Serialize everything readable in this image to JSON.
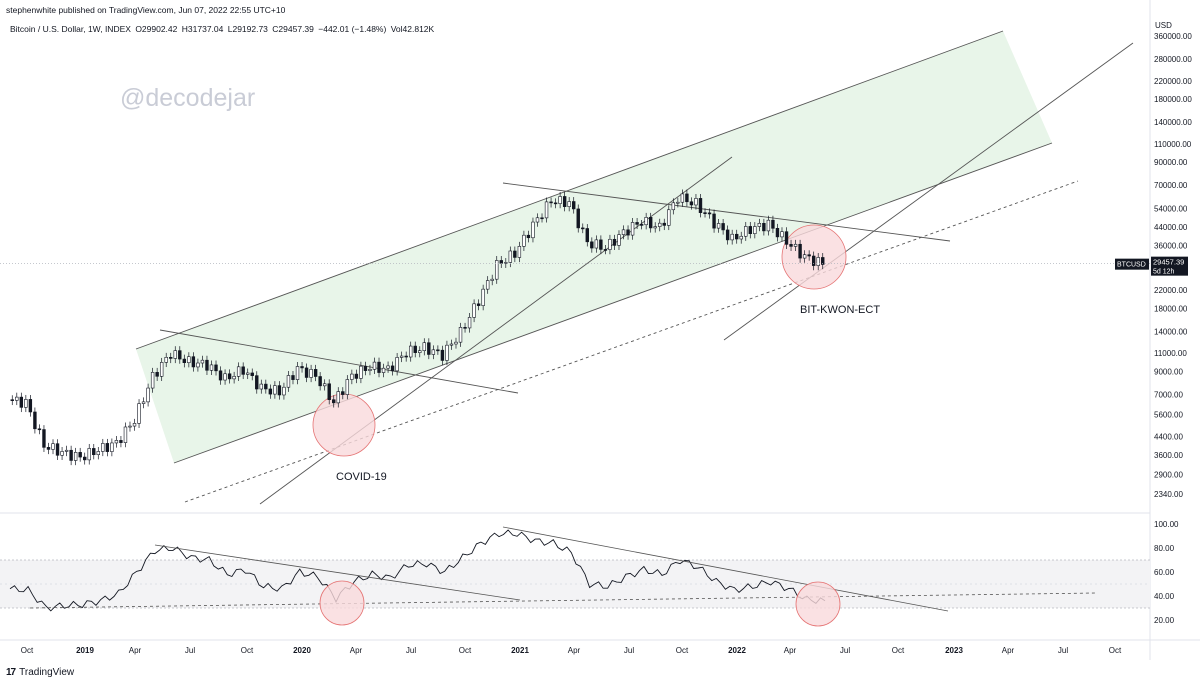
{
  "header": {
    "publisher": "stephenwhite published on TradingView.com, Jun 07, 2022 22:55 UTC+10",
    "symbol": "Bitcoin / U.S. Dollar, 1W, INDEX",
    "open": "O29902.42",
    "high": "H31737.04",
    "low": "L29192.73",
    "close": "C29457.39",
    "change": "−442.01 (−1.48%)",
    "volume": "Vol42.812K"
  },
  "watermark": "@decodejar",
  "annotations": {
    "covid": "COVID-19",
    "bitkwon": "BIT-KWON-ECT"
  },
  "price_tag": {
    "symbol": "BTCUSD",
    "value": "29457.39",
    "countdown": "5d 12h"
  },
  "branding": {
    "name": "TradingView",
    "logo_glyph": "17"
  },
  "colors": {
    "channel_fill": "#e8f5e9",
    "circle_fill": "#f9d9dc",
    "circle_stroke": "#e57373",
    "line": "#555555",
    "candle": "#131722",
    "rsi_band": "#f3f3f5"
  },
  "chart_data": [
    {
      "type": "line",
      "subtype": "candlestick",
      "title": "Bitcoin / U.S. Dollar, 1W, INDEX",
      "ylabel": "USD",
      "yscale": "log",
      "ylim": [
        2340,
        360000
      ],
      "y_ticks": [
        2340,
        2900,
        3600,
        4400,
        5600,
        7000,
        9000,
        11000,
        14000,
        18000,
        22000,
        28000,
        36000,
        44000,
        54000,
        70000,
        90000,
        110000,
        140000,
        180000,
        220000,
        280000,
        360000
      ],
      "y_tick_labels": [
        "2340.00",
        "2900.00",
        "3600.00",
        "4400.00",
        "5600.00",
        "7000.00",
        "9000.00",
        "11000.00",
        "14000.00",
        "18000.00",
        "22000.00",
        "28000.00",
        "36000.00",
        "44000.00",
        "54000.00",
        "70000.00",
        "90000.00",
        "110000.00",
        "140000.00",
        "180000.00",
        "220000.00",
        "280000.00",
        "360000.00"
      ],
      "x_tick_labels": [
        "Oct",
        "2019",
        "Apr",
        "Jul",
        "Oct",
        "2020",
        "Apr",
        "Jul",
        "Oct",
        "2021",
        "Apr",
        "Jul",
        "Oct",
        "2022",
        "Apr",
        "Jul",
        "Oct",
        "2023",
        "Apr",
        "Jul",
        "Oct"
      ],
      "series": [
        {
          "name": "BTCUSD",
          "x": [
            "2018-09",
            "2018-10",
            "2018-11",
            "2018-12",
            "2019-01",
            "2019-02",
            "2019-03",
            "2019-04",
            "2019-05",
            "2019-06",
            "2019-07",
            "2019-08",
            "2019-09",
            "2019-10",
            "2019-11",
            "2019-12",
            "2020-01",
            "2020-02",
            "2020-03",
            "2020-04",
            "2020-05",
            "2020-06",
            "2020-07",
            "2020-08",
            "2020-09",
            "2020-10",
            "2020-11",
            "2020-12",
            "2021-01",
            "2021-02",
            "2021-03",
            "2021-04",
            "2021-05",
            "2021-06",
            "2021-07",
            "2021-08",
            "2021-09",
            "2021-10",
            "2021-11",
            "2021-12",
            "2022-01",
            "2022-02",
            "2022-03",
            "2022-04",
            "2022-05",
            "2022-06"
          ],
          "values": [
            6600,
            6400,
            4000,
            3700,
            3500,
            3800,
            4100,
            5300,
            8500,
            11000,
            10000,
            9700,
            8300,
            9200,
            7500,
            7200,
            9300,
            8600,
            6400,
            8600,
            9500,
            9200,
            11100,
            11700,
            10800,
            13800,
            19700,
            29000,
            33000,
            45000,
            58800,
            57800,
            37300,
            35000,
            41500,
            47100,
            43800,
            61300,
            57000,
            46300,
            38500,
            43200,
            45500,
            37700,
            31800,
            29457.39
          ]
        }
      ],
      "annotations": [
        "COVID-19",
        "BIT-KWON-ECT"
      ],
      "current_price": 29457.39
    },
    {
      "type": "line",
      "title": "",
      "ylim": [
        10,
        105
      ],
      "y_ticks": [
        20,
        40,
        60,
        80,
        100
      ],
      "y_tick_labels": [
        "20.00",
        "40.00",
        "60.00",
        "80.00",
        "100.00"
      ],
      "band": [
        30,
        70
      ],
      "series": [
        {
          "name": "",
          "x": [
            "2018-09",
            "2018-10",
            "2018-11",
            "2018-12",
            "2019-01",
            "2019-02",
            "2019-03",
            "2019-04",
            "2019-05",
            "2019-06",
            "2019-07",
            "2019-08",
            "2019-09",
            "2019-10",
            "2019-11",
            "2019-12",
            "2020-01",
            "2020-02",
            "2020-03",
            "2020-04",
            "2020-05",
            "2020-06",
            "2020-07",
            "2020-08",
            "2020-09",
            "2020-10",
            "2020-11",
            "2020-12",
            "2021-01",
            "2021-02",
            "2021-03",
            "2021-04",
            "2021-05",
            "2021-06",
            "2021-07",
            "2021-08",
            "2021-09",
            "2021-10",
            "2021-11",
            "2021-12",
            "2022-01",
            "2022-02",
            "2022-03",
            "2022-04",
            "2022-05",
            "2022-06"
          ],
          "values": [
            46,
            45,
            30,
            32,
            33,
            36,
            42,
            60,
            78,
            80,
            72,
            70,
            58,
            62,
            48,
            46,
            60,
            56,
            38,
            52,
            58,
            55,
            66,
            67,
            60,
            72,
            84,
            92,
            92,
            86,
            84,
            76,
            50,
            48,
            56,
            62,
            58,
            70,
            64,
            52,
            45,
            48,
            52,
            46,
            37,
            36
          ]
        }
      ]
    }
  ]
}
